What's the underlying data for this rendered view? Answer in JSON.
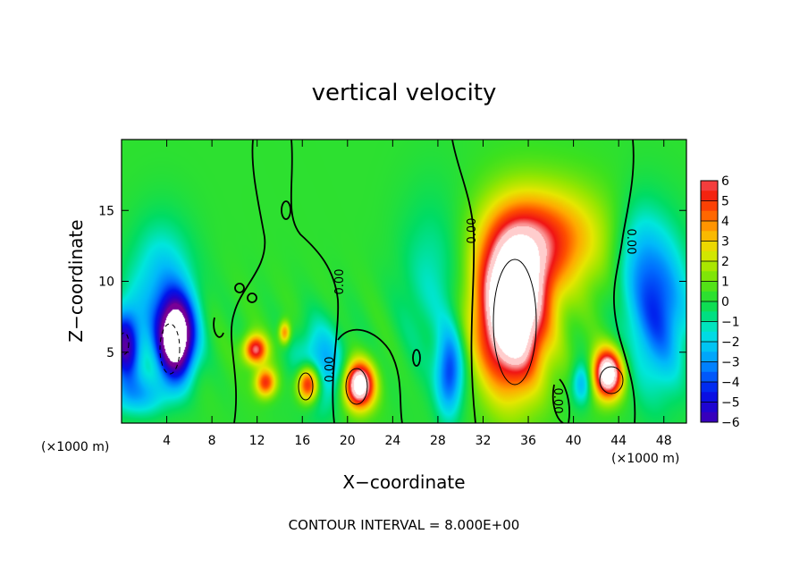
{
  "chart_data": {
    "type": "heatmap",
    "title": "vertical velocity",
    "xlabel": "X−coordinate",
    "ylabel": "Z−coordinate",
    "x_unit_left": "(×1000 m)",
    "x_unit_right": "(×1000 m)",
    "xlim": [
      0,
      50
    ],
    "ylim": [
      0,
      20
    ],
    "x_ticks": [
      4,
      8,
      12,
      16,
      20,
      24,
      28,
      32,
      36,
      40,
      44,
      48
    ],
    "y_ticks": [
      5,
      10,
      15
    ],
    "colorbar": {
      "ticks": [
        6,
        5,
        4,
        3,
        2,
        1,
        0,
        -1,
        -2,
        -3,
        -4,
        -5,
        -6
      ],
      "tick_labels": [
        "6",
        "5",
        "4",
        "3",
        "2",
        "1",
        "0",
        "−1",
        "−2",
        "−3",
        "−4",
        "−5",
        "−6"
      ],
      "range": [
        -6,
        6
      ]
    },
    "contour_labels": [
      "0.00",
      "0.00",
      "0.00",
      "0.00",
      "0.00"
    ],
    "footer": "CONTOUR INTERVAL = 8.000E+00",
    "features": [
      {
        "x": 34.5,
        "z": 8.0,
        "sx": 3.0,
        "sz": 5.2,
        "amp": 11
      },
      {
        "x": 37.5,
        "z": 13.0,
        "sx": 5.0,
        "sz": 3.6,
        "amp": 4.5
      },
      {
        "x": 43.0,
        "z": 3.5,
        "sx": 1.3,
        "sz": 1.7,
        "amp": 9
      },
      {
        "x": 21.0,
        "z": 2.7,
        "sx": 1.3,
        "sz": 1.6,
        "amp": 9
      },
      {
        "x": 16.5,
        "z": 2.8,
        "sx": 1.0,
        "sz": 1.3,
        "amp": 7
      },
      {
        "x": 11.8,
        "z": 5.2,
        "sx": 1.0,
        "sz": 1.0,
        "amp": 6
      },
      {
        "x": 12.7,
        "z": 2.9,
        "sx": 0.9,
        "sz": 1.0,
        "amp": 5
      },
      {
        "x": 14.4,
        "z": 6.4,
        "sx": 0.5,
        "sz": 0.8,
        "amp": 4
      },
      {
        "x": 4.8,
        "z": 6.0,
        "sx": 1.6,
        "sz": 2.8,
        "amp": -10
      },
      {
        "x": 3.5,
        "z": 9.5,
        "sx": 2.8,
        "sz": 4.5,
        "amp": -2.8
      },
      {
        "x": 0.3,
        "z": 5.5,
        "sx": 1.3,
        "sz": 2.6,
        "amp": -6
      },
      {
        "x": 17.5,
        "z": 4.0,
        "sx": 2.2,
        "sz": 3.0,
        "amp": -3.2
      },
      {
        "x": 29.0,
        "z": 3.5,
        "sx": 1.2,
        "sz": 3.0,
        "amp": -4.2
      },
      {
        "x": 27.5,
        "z": 10.0,
        "sx": 3.0,
        "sz": 6.0,
        "amp": -1.5
      },
      {
        "x": 47.5,
        "z": 8.0,
        "sx": 2.6,
        "sz": 5.5,
        "amp": -4.2
      },
      {
        "x": 45.5,
        "z": 12.0,
        "sx": 2.0,
        "sz": 4.0,
        "amp": -1.6
      },
      {
        "x": 40.7,
        "z": 2.8,
        "sx": 0.9,
        "sz": 1.5,
        "amp": -3.0
      },
      {
        "x": 1.5,
        "z": 2.0,
        "sx": 2.5,
        "sz": 1.5,
        "amp": -2.5
      }
    ],
    "grid": false,
    "legend": "colorbar-right"
  }
}
